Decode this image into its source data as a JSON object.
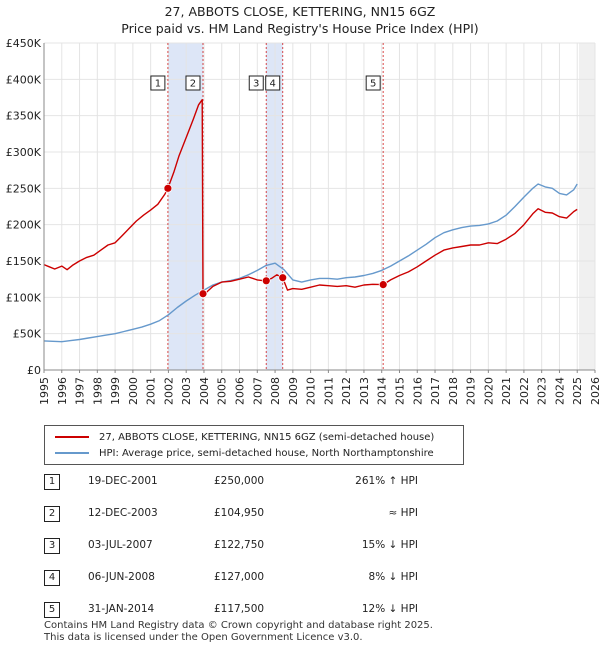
{
  "title_line1": "27, ABBOTS CLOSE, KETTERING, NN15 6GZ",
  "title_line2": "Price paid vs. HM Land Registry's House Price Index (HPI)",
  "chart_data": {
    "type": "line",
    "xlim": [
      1995,
      2026
    ],
    "ylim": [
      0,
      450000
    ],
    "y_ticks": [
      0,
      50000,
      100000,
      150000,
      200000,
      250000,
      300000,
      350000,
      400000,
      450000
    ],
    "y_tick_labels": [
      "£0",
      "£50K",
      "£100K",
      "£150K",
      "£200K",
      "£250K",
      "£300K",
      "£350K",
      "£400K",
      "£450K"
    ],
    "x_ticks": [
      1995,
      1996,
      1997,
      1998,
      1999,
      2000,
      2001,
      2002,
      2003,
      2004,
      2005,
      2006,
      2007,
      2008,
      2009,
      2010,
      2011,
      2012,
      2013,
      2014,
      2015,
      2016,
      2017,
      2018,
      2019,
      2020,
      2021,
      2022,
      2023,
      2024,
      2025,
      2026
    ],
    "x_tick_labels": [
      "1995",
      "1996",
      "1997",
      "1998",
      "1999",
      "2000",
      "2001",
      "2002",
      "2003",
      "2004",
      "2005",
      "2006",
      "2007",
      "2008",
      "2009",
      "2010",
      "2011",
      "2012",
      "2013",
      "2014",
      "2015",
      "2016",
      "2017",
      "2018",
      "2019",
      "2020",
      "2021",
      "2022",
      "2023",
      "2024",
      "2025",
      "2026"
    ],
    "grid": true,
    "series": [
      {
        "name": "27, ABBOTS CLOSE, KETTERING, NN15 6GZ (semi-detached house)",
        "color": "#cc0000",
        "x": [
          1995.0,
          1995.3,
          1995.6,
          1996.0,
          1996.3,
          1996.6,
          1997.0,
          1997.4,
          1997.8,
          1998.2,
          1998.6,
          1999.0,
          1999.4,
          1999.8,
          2000.2,
          2000.6,
          2001.0,
          2001.4,
          2001.8,
          2001.97,
          2002.3,
          2002.6,
          2003.0,
          2003.4,
          2003.7,
          2003.9,
          2003.945,
          2004.1,
          2004.5,
          2005.0,
          2005.5,
          2006.0,
          2006.5,
          2007.0,
          2007.3,
          2007.504,
          2007.8,
          2008.1,
          2008.43,
          2008.7,
          2009.0,
          2009.5,
          2010.0,
          2010.5,
          2011.0,
          2011.5,
          2012.0,
          2012.5,
          2013.0,
          2013.5,
          2014.083,
          2014.5,
          2015.0,
          2015.5,
          2016.0,
          2016.5,
          2017.0,
          2017.5,
          2018.0,
          2018.5,
          2019.0,
          2019.5,
          2020.0,
          2020.5,
          2021.0,
          2021.5,
          2022.0,
          2022.5,
          2022.8,
          2023.2,
          2023.6,
          2024.0,
          2024.4,
          2024.8,
          2025.0
        ],
        "values": [
          145000,
          142000,
          139000,
          143000,
          138000,
          144000,
          150000,
          155000,
          158000,
          165000,
          172000,
          175000,
          185000,
          195000,
          205000,
          213000,
          220000,
          228000,
          242000,
          250000,
          272000,
          295000,
          320000,
          345000,
          365000,
          372000,
          104950,
          106000,
          115000,
          121000,
          122000,
          125000,
          128000,
          124000,
          123000,
          122750,
          126000,
          131000,
          127000,
          110000,
          112000,
          111000,
          114000,
          117000,
          116000,
          115000,
          116000,
          114000,
          117000,
          118000,
          117500,
          124000,
          130000,
          135000,
          142000,
          150000,
          158000,
          165000,
          168000,
          170000,
          172000,
          172000,
          175000,
          174000,
          180000,
          188000,
          200000,
          215000,
          222000,
          217000,
          216000,
          211000,
          209000,
          218000,
          221000
        ]
      },
      {
        "name": "HPI: Average price, semi-detached house, North Northamptonshire",
        "color": "#6699cc",
        "x": [
          1995.0,
          1995.5,
          1996.0,
          1996.5,
          1997.0,
          1997.5,
          1998.0,
          1998.5,
          1999.0,
          1999.5,
          2000.0,
          2000.5,
          2001.0,
          2001.5,
          2002.0,
          2002.5,
          2003.0,
          2003.5,
          2004.0,
          2004.5,
          2005.0,
          2005.5,
          2006.0,
          2006.5,
          2007.0,
          2007.5,
          2008.0,
          2008.5,
          2009.0,
          2009.5,
          2010.0,
          2010.5,
          2011.0,
          2011.5,
          2012.0,
          2012.5,
          2013.0,
          2013.5,
          2014.0,
          2014.5,
          2015.0,
          2015.5,
          2016.0,
          2016.5,
          2017.0,
          2017.5,
          2018.0,
          2018.5,
          2019.0,
          2019.5,
          2020.0,
          2020.5,
          2021.0,
          2021.5,
          2022.0,
          2022.5,
          2022.8,
          2023.2,
          2023.6,
          2024.0,
          2024.4,
          2024.8,
          2025.0
        ],
        "values": [
          40000,
          39500,
          39000,
          40500,
          42000,
          44000,
          46000,
          48000,
          50000,
          53000,
          56000,
          59000,
          63000,
          68000,
          76000,
          86000,
          95000,
          103000,
          110000,
          117000,
          121000,
          123000,
          126000,
          131000,
          137000,
          144000,
          147000,
          138000,
          124000,
          121000,
          124000,
          126000,
          126000,
          125000,
          127000,
          128000,
          130000,
          133000,
          137000,
          143000,
          150000,
          157000,
          165000,
          173000,
          182000,
          189000,
          193000,
          196000,
          198000,
          199000,
          201000,
          205000,
          213000,
          225000,
          238000,
          250000,
          256000,
          252000,
          250000,
          243000,
          241000,
          248000,
          256000
        ]
      }
    ],
    "sale_markers": [
      {
        "num": "1",
        "x": 2001.97,
        "y": 250000
      },
      {
        "num": "2",
        "x": 2003.945,
        "y": 104950
      },
      {
        "num": "3",
        "x": 2007.504,
        "y": 122750
      },
      {
        "num": "4",
        "x": 2008.43,
        "y": 127000
      },
      {
        "num": "5",
        "x": 2014.083,
        "y": 117500
      }
    ]
  },
  "legend": {
    "property_label": "27, ABBOTS CLOSE, KETTERING, NN15 6GZ (semi-detached house)",
    "hpi_label": "HPI: Average price, semi-detached house, North Northamptonshire"
  },
  "sales": [
    {
      "num": "1",
      "date": "19-DEC-2001",
      "price": "£250,000",
      "hpi": "261% ↑ HPI"
    },
    {
      "num": "2",
      "date": "12-DEC-2003",
      "price": "£104,950",
      "hpi": "≈ HPI"
    },
    {
      "num": "3",
      "date": "03-JUL-2007",
      "price": "£122,750",
      "hpi": "15% ↓ HPI"
    },
    {
      "num": "4",
      "date": "06-JUN-2008",
      "price": "£127,000",
      "hpi": "8% ↓ HPI"
    },
    {
      "num": "5",
      "date": "31-JAN-2014",
      "price": "£117,500",
      "hpi": "12% ↓ HPI"
    }
  ],
  "footer_line1": "Contains HM Land Registry data © Crown copyright and database right 2025.",
  "footer_line2": "This data is licensed under the Open Government Licence v3.0."
}
